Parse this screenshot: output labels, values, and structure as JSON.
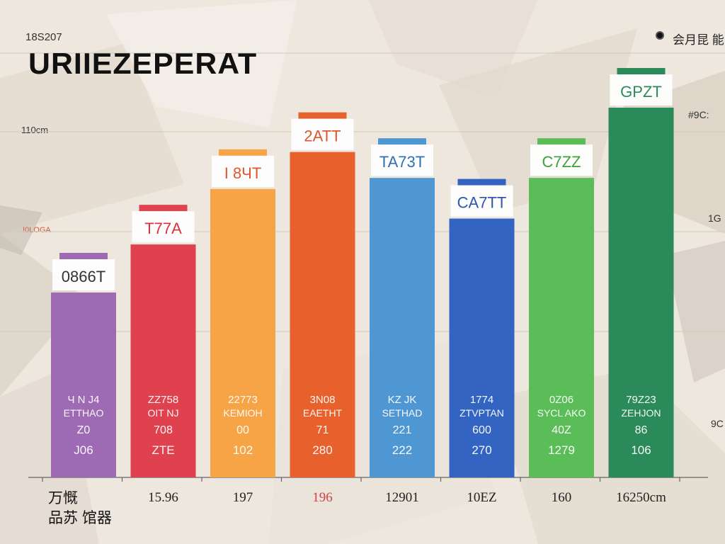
{
  "header": {
    "title": "URIIEZEPERAT",
    "corner_text": "18S207",
    "legend_text": "会月昆 能"
  },
  "axis": {
    "left_ticks": [
      "110cm",
      "!0LOGA"
    ],
    "right_ticks": [
      "#9C:",
      "1G",
      "9C"
    ]
  },
  "footer": {
    "label_line1": "万慨",
    "label_line2": "品苏 馆器"
  },
  "colors": {
    "purple": "#9d6ab3",
    "red": "#e0414f",
    "orange": "#f6a445",
    "deep_orange": "#e8602c",
    "blue": "#4f97d3",
    "royal_blue": "#3464c2",
    "green": "#5bbd57",
    "dark_green": "#2a8a5a"
  },
  "chart_data": {
    "type": "bar",
    "title": "URIIEZEPERAT",
    "ylim": [
      0,
      1
    ],
    "grid": true,
    "categories": [
      "",
      "15.96",
      "197",
      "196",
      "12901",
      "10EZ",
      "160",
      "16250cm"
    ],
    "values": [
      0.5,
      0.63,
      0.78,
      0.88,
      0.81,
      0.7,
      0.81,
      1.0
    ],
    "top_labels": [
      "0866T",
      "T77A",
      "I 8ЧT",
      "2ATT",
      "TA73T",
      "CA7TT",
      "C7ZZ",
      "GPZT"
    ],
    "colors": [
      "#9d6ab3",
      "#e0414f",
      "#f6a445",
      "#e8602c",
      "#4f97d3",
      "#3464c2",
      "#5bbd57",
      "#2a8a5a"
    ],
    "label_colors": [
      "#333333",
      "#d9323f",
      "#e0552e",
      "#e0552e",
      "#2f6fb4",
      "#2f55b0",
      "#3aa23a",
      "#2a8a5a"
    ],
    "inner_text": [
      [
        "Ч N J4",
        "ETTHAO",
        "Z0",
        "J06"
      ],
      [
        "ZZ758",
        "OIT NJ",
        "708",
        "ZTE"
      ],
      [
        "22773",
        "KEMIOH",
        "00",
        "102"
      ],
      [
        "3N08",
        "EAETHT",
        "71",
        "280"
      ],
      [
        "KZ JK",
        "SETHAD",
        "221",
        "222"
      ],
      [
        "1774",
        "ZTVPTAN",
        "600",
        "270"
      ],
      [
        "0Z06",
        "SYCL AKO",
        "40Z",
        "1279"
      ],
      [
        "79Z23",
        "ZEHJON",
        "86",
        "106"
      ]
    ]
  }
}
